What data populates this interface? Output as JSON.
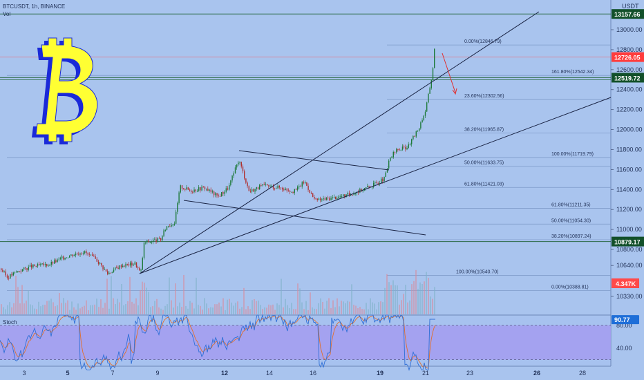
{
  "header": {
    "symbol": "BTCUSDT, 1h, BINANCE",
    "volume_label": "Vol",
    "currency": "USDT",
    "stoch_label": "Stoch"
  },
  "colors": {
    "background": "#a9c4ee",
    "candle_up": "#1e7a3a",
    "candle_down": "#b03030",
    "price_line": "#ff5252",
    "level_label_bg": "#12502a",
    "current_price_bg": "#ff3b3b",
    "volume_label_bg": "#ff4a4a",
    "stoch_value_bg": "#1e6ed8",
    "stoch_band": "#a39cf0",
    "bitcoin_logo_fill": "#ffff33",
    "bitcoin_logo_shadow": "#1a2ad8"
  },
  "chart_data": [
    {
      "type": "candlestick",
      "ylim": [
        10230,
        13230
      ],
      "yticks": [
        10330,
        10640,
        10800,
        11000,
        11200,
        11400,
        11600,
        11800,
        12000,
        12200,
        12400,
        12600,
        12800,
        13000
      ],
      "xticks": [
        "3",
        "5",
        "7",
        "9",
        "12",
        "14",
        "16",
        "19",
        "21",
        "23",
        "26",
        "28"
      ],
      "xticks_bold": [
        "5",
        "12",
        "19",
        "26"
      ],
      "current_price": 12726.05,
      "current_price_label": "12726.05",
      "price_labels": [
        "13157.66",
        "12519.72",
        "10879.17"
      ],
      "volume_label": "4.347K",
      "path_keypoints": [
        [
          0,
          10610
        ],
        [
          10,
          10520
        ],
        [
          24,
          10580
        ],
        [
          45,
          10630
        ],
        [
          70,
          10650
        ],
        [
          95,
          10730
        ],
        [
          120,
          10780
        ],
        [
          140,
          10690
        ],
        [
          155,
          10560
        ],
        [
          175,
          10640
        ],
        [
          195,
          10660
        ],
        [
          203,
          10560
        ],
        [
          208,
          10870
        ],
        [
          232,
          10900
        ],
        [
          240,
          11030
        ],
        [
          252,
          11070
        ],
        [
          260,
          11430
        ],
        [
          275,
          11390
        ],
        [
          295,
          11420
        ],
        [
          315,
          11330
        ],
        [
          330,
          11420
        ],
        [
          345,
          11700
        ],
        [
          360,
          11380
        ],
        [
          380,
          11440
        ],
        [
          405,
          11420
        ],
        [
          425,
          11380
        ],
        [
          440,
          11480
        ],
        [
          455,
          11290
        ],
        [
          475,
          11310
        ],
        [
          500,
          11340
        ],
        [
          520,
          11390
        ],
        [
          540,
          11450
        ],
        [
          556,
          11510
        ],
        [
          563,
          11700
        ],
        [
          572,
          11790
        ],
        [
          590,
          11830
        ],
        [
          605,
          12010
        ],
        [
          615,
          12190
        ],
        [
          620,
          12370
        ],
        [
          625,
          12560
        ],
        [
          628,
          12800
        ],
        [
          629,
          12726
        ]
      ],
      "fib_levels": [
        {
          "label": "0.00%(12846.79)",
          "price": 12846.79
        },
        {
          "label": "161.80%(12542.34)",
          "price": 12542.34
        },
        {
          "label": "23.60%(12302.56)",
          "price": 12302.56
        },
        {
          "label": "38.20%(11965.87)",
          "price": 11965.87
        },
        {
          "label": "50.00%(11633.75)",
          "price": 11633.75
        },
        {
          "label": "100.00%(11719.79)",
          "price": 11719.79
        },
        {
          "label": "61.80%(11421.03)",
          "price": 11421.03
        },
        {
          "label": "61.80%(11211.35)",
          "price": 11211.35
        },
        {
          "label": "50.00%(11054.30)",
          "price": 11054.3
        },
        {
          "label": "38.20%(10897.24)",
          "price": 10897.24
        },
        {
          "label": "100.00%(10540.70)",
          "price": 10540.7
        },
        {
          "label": "0.00%(10388.81)",
          "price": 10388.81
        }
      ]
    },
    {
      "type": "line",
      "title": "Stoch",
      "yticks": [
        40.0,
        80.0
      ],
      "ytick_labels": [
        "40.00",
        "80.00"
      ],
      "ylim": [
        0,
        100
      ],
      "band": [
        20,
        80
      ],
      "current_value": 90.77,
      "current_value_label": "90.77"
    }
  ]
}
